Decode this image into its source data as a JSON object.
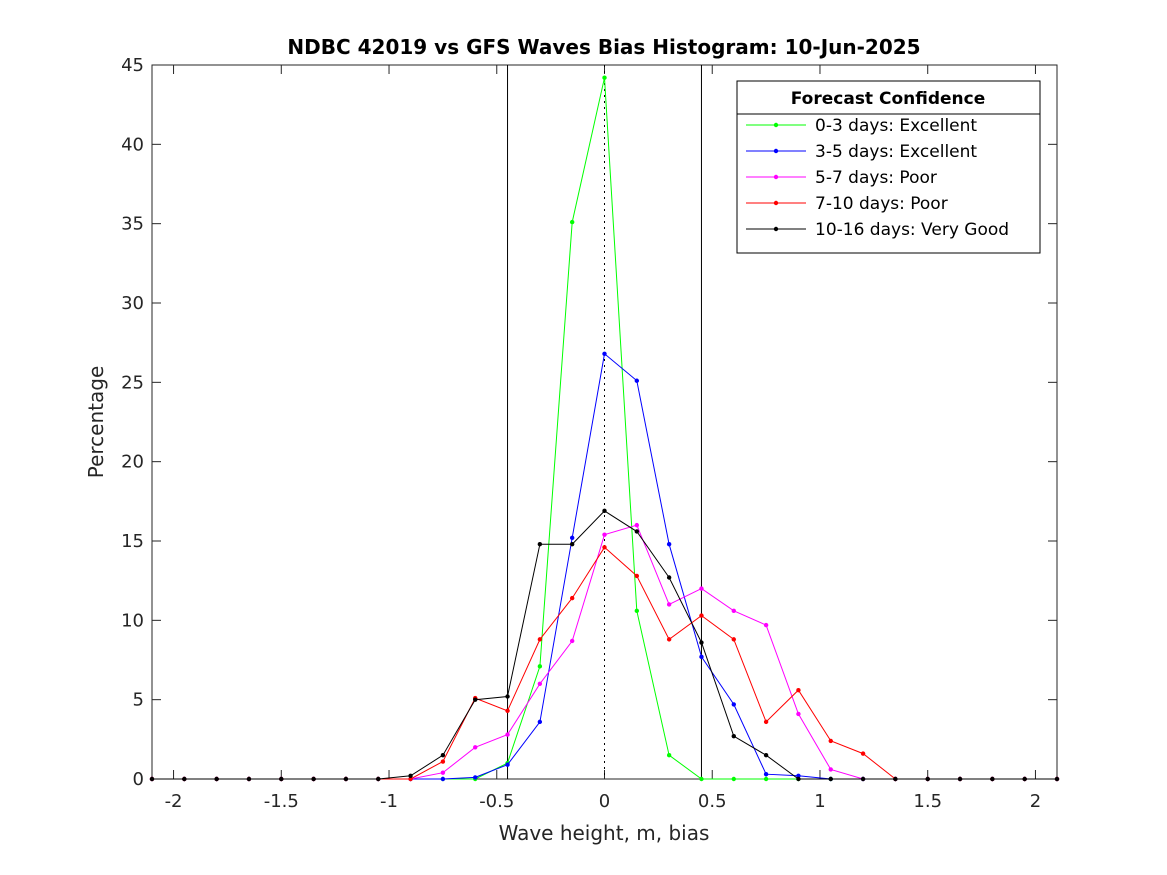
{
  "chart_data": {
    "type": "line",
    "title": "NDBC 42019 vs GFS Waves Bias Histogram: 10-Jun-2025",
    "xlabel": "Wave height, m, bias",
    "ylabel": "Percentage",
    "xlim": [
      -2.1,
      2.1
    ],
    "ylim": [
      0,
      45
    ],
    "xticks": [
      -2,
      -1.5,
      -1,
      -0.5,
      0,
      0.5,
      1,
      1.5,
      2
    ],
    "xtick_labels": [
      "-2",
      "-1.5",
      "-1",
      "-0.5",
      "0",
      "0.5",
      "1",
      "1.5",
      "2"
    ],
    "yticks": [
      0,
      5,
      10,
      15,
      20,
      25,
      30,
      35,
      40,
      45
    ],
    "ytick_labels": [
      "0",
      "5",
      "10",
      "15",
      "20",
      "25",
      "30",
      "35",
      "40",
      "45"
    ],
    "grid": false,
    "legend_title": "Forecast Confidence",
    "legend_position": "top-right",
    "vertical_lines": [
      {
        "x": -0.45,
        "style": "solid"
      },
      {
        "x": 0.45,
        "style": "solid"
      },
      {
        "x": 0,
        "style": "dotted"
      }
    ],
    "x": [
      -2.1,
      -1.95,
      -1.8,
      -1.65,
      -1.5,
      -1.35,
      -1.2,
      -1.05,
      -0.9,
      -0.75,
      -0.6,
      -0.45,
      -0.3,
      -0.15,
      0,
      0.15,
      0.3,
      0.45,
      0.6,
      0.75,
      0.9,
      1.05,
      1.2,
      1.35,
      1.5,
      1.65,
      1.8,
      1.95,
      2.1
    ],
    "series": [
      {
        "name": "0-3 days: Excellent",
        "color": "#00ff00",
        "values": [
          0,
          0,
          0,
          0,
          0,
          0,
          0,
          0,
          0,
          0,
          0,
          1.0,
          7.1,
          35.1,
          44.2,
          10.6,
          1.5,
          0,
          0,
          0,
          0,
          0,
          0,
          0,
          0,
          0,
          0,
          0,
          0
        ]
      },
      {
        "name": "3-5 days: Excellent",
        "color": "#0000ff",
        "values": [
          0,
          0,
          0,
          0,
          0,
          0,
          0,
          0,
          0,
          0,
          0.1,
          0.9,
          3.6,
          15.2,
          26.8,
          25.1,
          14.8,
          7.7,
          4.7,
          0.3,
          0.2,
          0,
          0,
          0,
          0,
          0,
          0,
          0,
          0
        ]
      },
      {
        "name": "5-7 days: Poor",
        "color": "#ff00ff",
        "values": [
          0,
          0,
          0,
          0,
          0,
          0,
          0,
          0,
          0,
          0.4,
          2.0,
          2.8,
          6.0,
          8.7,
          15.4,
          16.0,
          11.0,
          12.0,
          10.6,
          9.7,
          4.1,
          0.6,
          0,
          0,
          0,
          0,
          0,
          0,
          0
        ]
      },
      {
        "name": "7-10 days: Poor",
        "color": "#ff0000",
        "values": [
          0,
          0,
          0,
          0,
          0,
          0,
          0,
          0,
          0,
          1.1,
          5.1,
          4.3,
          8.8,
          11.4,
          14.6,
          12.8,
          8.8,
          10.3,
          8.8,
          3.6,
          5.6,
          2.4,
          1.6,
          0,
          0,
          0,
          0,
          0,
          0
        ]
      },
      {
        "name": "10-16 days: Very Good",
        "color": "#000000",
        "values": [
          0,
          0,
          0,
          0,
          0,
          0,
          0,
          0,
          0.2,
          1.5,
          5.0,
          5.2,
          14.8,
          14.8,
          16.9,
          15.6,
          12.7,
          8.6,
          2.7,
          1.5,
          0,
          0,
          0,
          0,
          0,
          0,
          0,
          0,
          0
        ]
      }
    ]
  }
}
